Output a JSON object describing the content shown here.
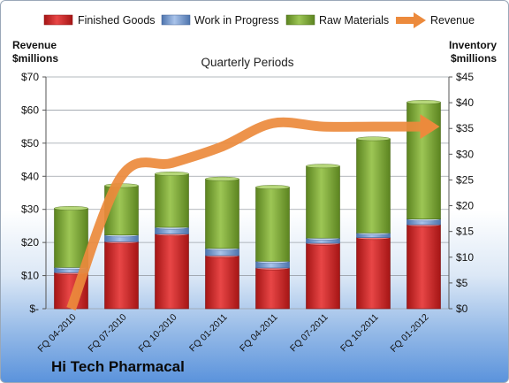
{
  "chart_data": {
    "type": "bar",
    "title": "Quarterly Periods",
    "company": "Hi Tech Pharmacal",
    "left_axis_label": [
      "Revenue",
      "$millions"
    ],
    "right_axis_label": [
      "Inventory",
      "$millions"
    ],
    "categories": [
      "FQ 04-2010",
      "FQ 07-2010",
      "FQ 10-2010",
      "FQ 01-2011",
      "FQ 04-2011",
      "FQ 07-2011",
      "FQ 10-2011",
      "FQ 01-2012"
    ],
    "left_axis": {
      "min": 0,
      "max": 70,
      "step": 10,
      "tick_labels": [
        "$-",
        "$10",
        "$20",
        "$30",
        "$40",
        "$50",
        "$60",
        "$70"
      ]
    },
    "right_axis": {
      "min": 0,
      "max": 45,
      "step": 5,
      "tick_labels": [
        "$0",
        "$5",
        "$10",
        "$15",
        "$20",
        "$25",
        "$30",
        "$35",
        "$40",
        "$45"
      ]
    },
    "legend_position": "top",
    "grid": true,
    "series": [
      {
        "name": "Finished Goods",
        "type": "bar",
        "axis": "right",
        "color": "#d42a2a",
        "values": [
          7.0,
          13.0,
          14.5,
          10.3,
          7.9,
          12.7,
          13.8,
          16.3
        ]
      },
      {
        "name": "Work in Progress",
        "type": "bar",
        "axis": "right",
        "color": "#7a9fd4",
        "values": [
          1.0,
          1.3,
          1.3,
          1.4,
          1.3,
          1.0,
          0.9,
          1.1
        ]
      },
      {
        "name": "Raw Materials",
        "type": "bar",
        "axis": "right",
        "color": "#7ea832",
        "values": [
          11.5,
          9.6,
          10.4,
          13.5,
          14.4,
          14.0,
          18.3,
          22.7
        ]
      },
      {
        "name": "Revenue",
        "type": "line",
        "axis": "left",
        "color": "#ec8a3c",
        "values": [
          0,
          40,
          44,
          49,
          56,
          55,
          55,
          55
        ]
      }
    ]
  }
}
